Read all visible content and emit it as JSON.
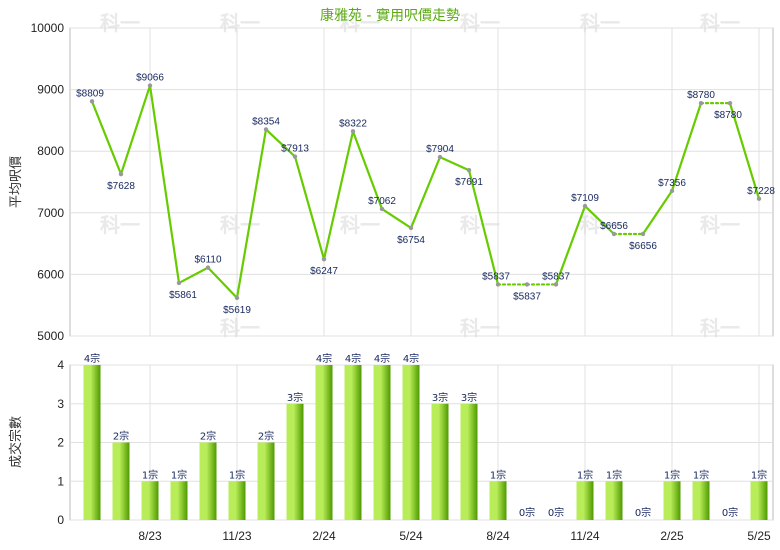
{
  "chart_data": [
    {
      "type": "line",
      "title": "康雅苑 - 實用呎價走勢",
      "ylabel": "平均呎價",
      "ylim": [
        5000,
        10000
      ],
      "yticks": [
        "5000",
        "6000",
        "7000",
        "8000",
        "9000",
        "10000"
      ],
      "grid": true,
      "x_tick_labels": [
        "8/23",
        "11/23",
        "2/24",
        "5/24",
        "8/24",
        "11/24",
        "2/25",
        "5/25"
      ],
      "x_tick_months": [
        2,
        5,
        8,
        11,
        14,
        17,
        20,
        23
      ],
      "series": [
        {
          "color": "#66cc00",
          "points": [
            {
              "month": 0,
              "value": 8809,
              "label": "$8809",
              "carried": false
            },
            {
              "month": 1,
              "value": 7628,
              "label": "$7628",
              "carried": false
            },
            {
              "month": 2,
              "value": 9066,
              "label": "$9066",
              "carried": false
            },
            {
              "month": 3,
              "value": 5861,
              "label": "$5861",
              "carried": false
            },
            {
              "month": 4,
              "value": 6110,
              "label": "$6110",
              "carried": false
            },
            {
              "month": 5,
              "value": 5619,
              "label": "$5619",
              "carried": false
            },
            {
              "month": 6,
              "value": 8354,
              "label": "$8354",
              "carried": false
            },
            {
              "month": 7,
              "value": 7913,
              "label": "$7913",
              "carried": false
            },
            {
              "month": 8,
              "value": 6247,
              "label": "$6247",
              "carried": false
            },
            {
              "month": 9,
              "value": 8322,
              "label": "$8322",
              "carried": false
            },
            {
              "month": 10,
              "value": 7062,
              "label": "$7062",
              "carried": false
            },
            {
              "month": 11,
              "value": 6754,
              "label": "$6754",
              "carried": false
            },
            {
              "month": 12,
              "value": 7904,
              "label": "$7904",
              "carried": false
            },
            {
              "month": 13,
              "value": 7691,
              "label": "$7691",
              "carried": false
            },
            {
              "month": 14,
              "value": 5837,
              "label": "$5837",
              "carried": false
            },
            {
              "month": 15,
              "value": 5837,
              "label": "$5837",
              "carried": true
            },
            {
              "month": 16,
              "value": 5837,
              "label": "$5837",
              "carried": true
            },
            {
              "month": 17,
              "value": 7109,
              "label": "$7109",
              "carried": false
            },
            {
              "month": 18,
              "value": 6656,
              "label": "$6656",
              "carried": false
            },
            {
              "month": 19,
              "value": 6656,
              "label": "$6656",
              "carried": true
            },
            {
              "month": 20,
              "value": 7356,
              "label": "$7356",
              "carried": false
            },
            {
              "month": 21,
              "value": 8780,
              "label": "$8780",
              "carried": false
            },
            {
              "month": 22,
              "value": 8780,
              "label": "$8780",
              "carried": true
            },
            {
              "month": 23,
              "value": 7228,
              "label": "$7228",
              "carried": false
            }
          ]
        }
      ]
    },
    {
      "type": "bar",
      "ylabel": "成交宗數",
      "ylim": [
        0,
        4
      ],
      "yticks": [
        "0",
        "1",
        "2",
        "3",
        "4"
      ],
      "grid": true,
      "x_tick_labels": [
        "8/23",
        "11/23",
        "2/24",
        "5/24",
        "8/24",
        "11/24",
        "2/25",
        "5/25"
      ],
      "x_tick_months": [
        2,
        5,
        8,
        11,
        14,
        17,
        20,
        23
      ],
      "values": [
        4,
        2,
        1,
        1,
        2,
        1,
        2,
        3,
        4,
        4,
        4,
        4,
        3,
        3,
        1,
        0,
        0,
        1,
        1,
        0,
        1,
        1,
        0,
        1
      ],
      "labels": [
        "4宗",
        "2宗",
        "1宗",
        "1宗",
        "2宗",
        "1宗",
        "2宗",
        "3宗",
        "4宗",
        "4宗",
        "4宗",
        "4宗",
        "3宗",
        "3宗",
        "1宗",
        "0宗",
        "0宗",
        "1宗",
        "1宗",
        "0宗",
        "1宗",
        "1宗",
        "0宗",
        "1宗"
      ],
      "bar_colors": {
        "light": "#b8ec58",
        "dark": "#4f9a00"
      }
    }
  ],
  "watermark": "科一"
}
